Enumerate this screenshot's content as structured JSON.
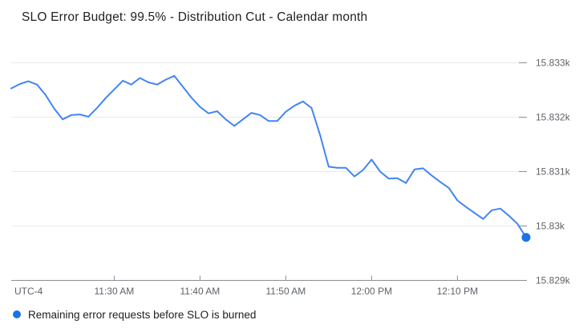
{
  "title": "SLO Error Budget: 99.5% - Distribution Cut - Calendar month",
  "legend": {
    "label": "Remaining error requests before SLO is burned",
    "marker_color": "#1a73e8"
  },
  "colors": {
    "background": "#ffffff",
    "line": "#4285f4",
    "endpoint_dot": "#1a73e8",
    "gridline": "#e9eaea",
    "axis_line": "#8a8f94",
    "tick": "#8a8f94",
    "axis_label": "#5f6368",
    "title": "#202124"
  },
  "chart_data": {
    "type": "line",
    "title": "SLO Error Budget: 99.5% - Distribution Cut - Calendar month",
    "grid": true,
    "legend_position": "bottom-left",
    "endpoint_dot": true,
    "x_axis": {
      "label": "UTC-4",
      "start": "11:18",
      "end": "12:18",
      "ticks": [
        {
          "time": "11:30",
          "label": "11:30 AM"
        },
        {
          "time": "11:40",
          "label": "11:40 AM"
        },
        {
          "time": "11:50",
          "label": "11:50 AM"
        },
        {
          "time": "12:00",
          "label": "12:00 PM"
        },
        {
          "time": "12:10",
          "label": "12:10 PM"
        }
      ]
    },
    "y_axis": {
      "side": "right",
      "range": [
        15829,
        15833
      ],
      "ticks": [
        {
          "value": 15833,
          "label": "15.833k"
        },
        {
          "value": 15832,
          "label": "15.832k"
        },
        {
          "value": 15831,
          "label": "15.831k"
        },
        {
          "value": 15830,
          "label": "15.83k"
        },
        {
          "value": 15829,
          "label": "15.829k"
        }
      ]
    },
    "series": [
      {
        "name": "Remaining error requests before SLO is burned",
        "x": [
          "11:18",
          "11:19",
          "11:20",
          "11:21",
          "11:22",
          "11:23",
          "11:24",
          "11:25",
          "11:26",
          "11:27",
          "11:28",
          "11:29",
          "11:30",
          "11:31",
          "11:32",
          "11:33",
          "11:34",
          "11:35",
          "11:36",
          "11:37",
          "11:38",
          "11:39",
          "11:40",
          "11:41",
          "11:42",
          "11:43",
          "11:44",
          "11:45",
          "11:46",
          "11:47",
          "11:48",
          "11:49",
          "11:50",
          "11:51",
          "11:52",
          "11:53",
          "11:54",
          "11:55",
          "11:56",
          "11:57",
          "11:58",
          "11:59",
          "12:00",
          "12:01",
          "12:02",
          "12:03",
          "12:04",
          "12:05",
          "12:06",
          "12:07",
          "12:08",
          "12:09",
          "12:10",
          "12:11",
          "12:12",
          "12:13",
          "12:14",
          "12:15",
          "12:16",
          "12:17",
          "12:18"
        ],
        "values": [
          15832.53,
          15832.61,
          15832.66,
          15832.6,
          15832.41,
          15832.16,
          15831.96,
          15832.04,
          15832.05,
          15832.01,
          15832.17,
          15832.35,
          15832.51,
          15832.67,
          15832.6,
          15832.72,
          15832.64,
          15832.6,
          15832.69,
          15832.76,
          15832.56,
          15832.36,
          15832.19,
          15832.07,
          15832.11,
          15831.96,
          15831.84,
          15831.96,
          15832.08,
          15832.04,
          15831.93,
          15831.93,
          15832.1,
          15832.21,
          15832.29,
          15832.17,
          15831.67,
          15831.09,
          15831.07,
          15831.07,
          15830.91,
          15831.03,
          15831.22,
          15831.0,
          15830.87,
          15830.88,
          15830.79,
          15831.04,
          15831.06,
          15830.93,
          15830.81,
          15830.7,
          15830.47,
          15830.35,
          15830.24,
          15830.13,
          15830.29,
          15830.32,
          15830.19,
          15830.04,
          15829.79
        ]
      }
    ]
  }
}
